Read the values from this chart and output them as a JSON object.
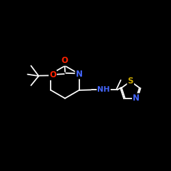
{
  "background_color": "#000000",
  "bond_color": "#ffffff",
  "atom_colors": {
    "N": "#4466ff",
    "O": "#ff2200",
    "S": "#ccaa00",
    "H": "#ffffff",
    "C": "#ffffff"
  },
  "font_size": 8.5,
  "fig_size": [
    2.5,
    2.5
  ],
  "dpi": 100
}
